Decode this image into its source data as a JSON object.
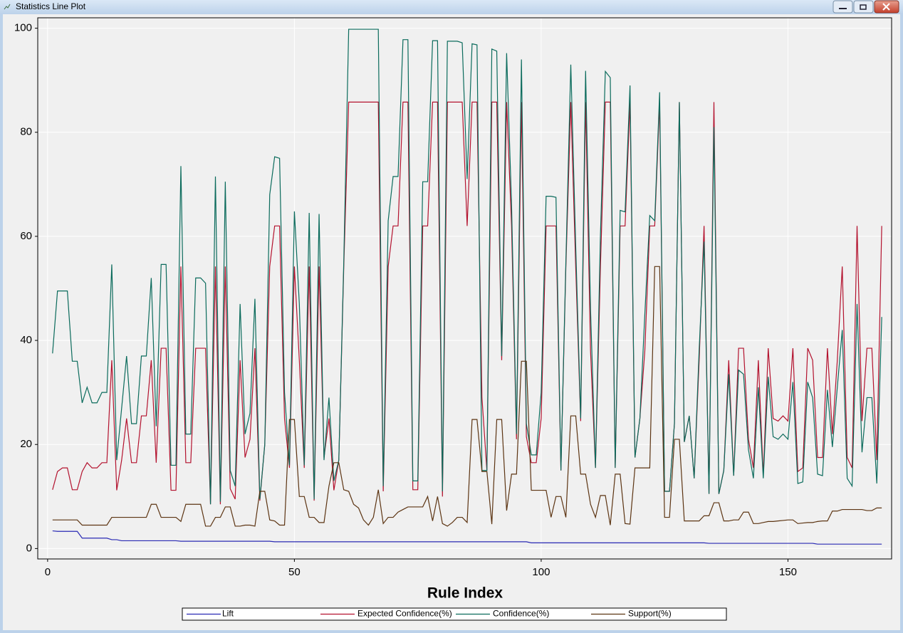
{
  "window_title": "Statistics Line Plot",
  "chart_data": {
    "type": "line",
    "xlabel": "Rule Index",
    "x": [
      1,
      2,
      3,
      4,
      5,
      6,
      7,
      8,
      9,
      10,
      11,
      12,
      13,
      14,
      15,
      16,
      17,
      18,
      19,
      20,
      21,
      22,
      23,
      24,
      25,
      26,
      27,
      28,
      29,
      30,
      31,
      32,
      33,
      34,
      35,
      36,
      37,
      38,
      39,
      40,
      41,
      42,
      43,
      44,
      45,
      46,
      47,
      48,
      49,
      50,
      51,
      52,
      53,
      54,
      55,
      56,
      57,
      58,
      59,
      60,
      61,
      62,
      63,
      64,
      65,
      66,
      67,
      68,
      69,
      70,
      71,
      72,
      73,
      74,
      75,
      76,
      77,
      78,
      79,
      80,
      81,
      82,
      83,
      84,
      85,
      86,
      87,
      88,
      89,
      90,
      91,
      92,
      93,
      94,
      95,
      96,
      97,
      98,
      99,
      100,
      101,
      102,
      103,
      104,
      105,
      106,
      107,
      108,
      109,
      110,
      111,
      112,
      113,
      114,
      115,
      116,
      117,
      118,
      119,
      120,
      121,
      122,
      123,
      124,
      125,
      126,
      127,
      128,
      129,
      130,
      131,
      132,
      133,
      134,
      135,
      136,
      137,
      138,
      139,
      140,
      141,
      142,
      143,
      144,
      145,
      146,
      147,
      148,
      149,
      150,
      151,
      152,
      153,
      154,
      155,
      156,
      157,
      158,
      159,
      160,
      161,
      162,
      163,
      164,
      165,
      166,
      167,
      168,
      169
    ],
    "series": [
      {
        "name": "Lift",
        "color": "#2a2ab4",
        "values": [
          3.4,
          3.3,
          3.3,
          3.3,
          3.3,
          3.3,
          2,
          2,
          2,
          2,
          2,
          2,
          1.7,
          1.7,
          1.5,
          1.5,
          1.5,
          1.5,
          1.5,
          1.5,
          1.5,
          1.5,
          1.5,
          1.5,
          1.5,
          1.5,
          1.4,
          1.4,
          1.4,
          1.4,
          1.4,
          1.4,
          1.4,
          1.4,
          1.4,
          1.4,
          1.4,
          1.4,
          1.4,
          1.4,
          1.4,
          1.4,
          1.4,
          1.4,
          1.4,
          1.3,
          1.3,
          1.3,
          1.3,
          1.3,
          1.3,
          1.3,
          1.3,
          1.3,
          1.3,
          1.3,
          1.3,
          1.3,
          1.3,
          1.3,
          1.3,
          1.3,
          1.3,
          1.3,
          1.3,
          1.3,
          1.3,
          1.3,
          1.3,
          1.3,
          1.3,
          1.3,
          1.3,
          1.3,
          1.3,
          1.3,
          1.3,
          1.3,
          1.3,
          1.3,
          1.3,
          1.3,
          1.3,
          1.3,
          1.3,
          1.3,
          1.3,
          1.3,
          1.3,
          1.3,
          1.3,
          1.3,
          1.3,
          1.3,
          1.3,
          1.3,
          1.3,
          1.1,
          1.1,
          1.1,
          1.1,
          1.1,
          1.1,
          1.1,
          1.1,
          1.1,
          1.1,
          1.1,
          1.1,
          1.1,
          1.1,
          1.1,
          1.1,
          1.1,
          1.1,
          1.1,
          1.1,
          1.1,
          1.1,
          1.1,
          1.1,
          1.1,
          1.1,
          1.1,
          1.1,
          1.1,
          1.1,
          1.1,
          1.1,
          1.1,
          1.1,
          1.1,
          1.1,
          1,
          1,
          1,
          1,
          1,
          1,
          1,
          1,
          1,
          1,
          1,
          1,
          1,
          1,
          1,
          1,
          1,
          1,
          1,
          1,
          1,
          1,
          0.85,
          0.85,
          0.85,
          0.85,
          0.85,
          0.85,
          0.85,
          0.85,
          0.85,
          0.85,
          0.85,
          0.85,
          0.85,
          0.85
        ]
      },
      {
        "name": "Expected Confidence(%)",
        "color": "#b3122e",
        "values": [
          11.3,
          14.8,
          15.5,
          15.5,
          11.3,
          11.3,
          14.8,
          16.5,
          15.5,
          15.5,
          16.5,
          16.5,
          36.2,
          11.2,
          17,
          25,
          16.5,
          16.5,
          25.5,
          25.5,
          36.2,
          16.5,
          38.5,
          38.5,
          11.2,
          11.2,
          54.2,
          16.5,
          16.5,
          38.5,
          38.5,
          38.5,
          8.5,
          54.2,
          8.5,
          54.2,
          11.5,
          9.5,
          36.2,
          17.5,
          21,
          38.5,
          9.2,
          20,
          54.2,
          62,
          62,
          25,
          15.5,
          54.2,
          36.2,
          15.5,
          54.2,
          9.2,
          54.2,
          17.5,
          25,
          11.2,
          17,
          54,
          85.8,
          85.8,
          85.8,
          85.8,
          85.8,
          85.8,
          85.8,
          11,
          54.2,
          62,
          62,
          85.8,
          85.8,
          11.3,
          11.3,
          62,
          62,
          85.8,
          85.8,
          10,
          85.8,
          85.8,
          85.8,
          85.8,
          62,
          85.8,
          85.8,
          29,
          15,
          85.8,
          85.8,
          36.2,
          85.8,
          62,
          21,
          85.8,
          21.5,
          16.5,
          16.5,
          25,
          62,
          62,
          62,
          15,
          54,
          85.8,
          54,
          24.5,
          85.8,
          38,
          15.5,
          54,
          85.8,
          85.8,
          15.5,
          62,
          62,
          85.8,
          17.5,
          25,
          38,
          62,
          62,
          85.8,
          11,
          11,
          24,
          85.8,
          20.5,
          25.5,
          13.5,
          36,
          62,
          10.5,
          85.8,
          10.5,
          15,
          36.2,
          14,
          38.5,
          38.5,
          21,
          15.5,
          36.2,
          14,
          38.5,
          25,
          24.5,
          25.5,
          24.5,
          38.5,
          14.8,
          15.5,
          38.5,
          36.2,
          17.5,
          17.5,
          38.5,
          22,
          36.2,
          54.2,
          17.5,
          15.5,
          62,
          24.5,
          38.5,
          38.5,
          17,
          62
        ]
      },
      {
        "name": "Confidence(%)",
        "color": "#0b6b5c",
        "values": [
          37.5,
          49.5,
          49.5,
          49.5,
          36,
          36,
          28,
          31,
          28,
          28,
          30,
          30,
          54.6,
          17,
          27,
          37,
          24,
          24,
          37,
          37,
          52,
          23.5,
          54.6,
          54.6,
          16,
          16,
          73.5,
          22,
          22,
          52,
          52,
          51,
          8.5,
          71.5,
          9,
          70.5,
          15,
          12,
          47,
          22,
          26,
          48,
          9.5,
          20,
          68,
          75.3,
          75,
          30,
          16,
          64.8,
          47,
          16,
          64.5,
          9.5,
          64.3,
          17,
          29,
          13,
          17,
          55,
          99.8,
          99.8,
          99.8,
          99.8,
          99.8,
          99.8,
          99.8,
          12,
          63,
          71.5,
          71.5,
          97.8,
          97.8,
          13,
          13,
          70.5,
          70.5,
          97.6,
          97.6,
          11,
          97.5,
          97.5,
          97.5,
          97.2,
          71,
          97,
          96.8,
          15,
          15,
          96,
          95.6,
          37,
          95.2,
          66,
          22,
          94,
          24,
          18,
          18,
          30,
          67.7,
          67.7,
          67.5,
          15,
          55,
          93,
          58,
          25,
          91.8,
          46,
          15.5,
          60,
          91.7,
          90.5,
          15.5,
          65,
          64.7,
          89,
          17.5,
          25,
          45,
          64,
          63,
          87.7,
          11,
          11,
          24,
          85.8,
          20.5,
          25.5,
          13.5,
          38,
          59,
          10.5,
          81,
          10.5,
          15,
          33.5,
          14,
          34.3,
          33.5,
          19,
          13.5,
          31,
          13.5,
          33,
          21.5,
          21,
          22,
          21,
          32,
          12.5,
          12.8,
          32,
          29,
          14.3,
          14,
          30.5,
          19.5,
          31,
          42,
          13.5,
          12,
          47,
          18.5,
          29,
          29,
          12.5,
          44.5
        ]
      },
      {
        "name": "Support(%)",
        "color": "#5c3412",
        "values": [
          5.5,
          5.5,
          5.5,
          5.5,
          5.5,
          5.5,
          4.5,
          4.5,
          4.5,
          4.5,
          4.5,
          4.5,
          6,
          6,
          6,
          6,
          6,
          6,
          6,
          6,
          8.5,
          8.5,
          6,
          6,
          6,
          6,
          5.2,
          8.5,
          8.5,
          8.5,
          8.5,
          4.3,
          4.3,
          6,
          6,
          8,
          8,
          4.3,
          4.3,
          4.5,
          4.5,
          4.3,
          11,
          11,
          5.5,
          5.3,
          4.5,
          4.5,
          24.8,
          24.8,
          10,
          10,
          6,
          6,
          5,
          5,
          12,
          16.5,
          16.5,
          11.3,
          11,
          8.5,
          7.8,
          5.5,
          4.5,
          6,
          11.3,
          4.8,
          6,
          6,
          7,
          7.5,
          8,
          8,
          8,
          8,
          10,
          5.3,
          10,
          4.8,
          4.3,
          5,
          6,
          6,
          5,
          24.8,
          24.8,
          14.8,
          14.8,
          4.7,
          24.8,
          24.8,
          7.3,
          14.3,
          14.3,
          36,
          36,
          11.2,
          11.2,
          11.2,
          11.2,
          6,
          10,
          10,
          6,
          25.5,
          25.5,
          14.3,
          14.3,
          8.5,
          6,
          10.2,
          10.2,
          4.5,
          14.3,
          14.3,
          4.8,
          4.7,
          15.5,
          15.5,
          15.5,
          15.5,
          54.2,
          54.2,
          6,
          6,
          21,
          21,
          5.3,
          5.3,
          5.3,
          5.3,
          6.3,
          6.3,
          8.8,
          8.8,
          5.3,
          5.3,
          5.5,
          5.5,
          7,
          7,
          4.8,
          4.8,
          5,
          5.2,
          5.2,
          5.3,
          5.4,
          5.5,
          5.5,
          4.8,
          4.9,
          5,
          5,
          5.2,
          5.3,
          5.3,
          7.2,
          7.2,
          7.5,
          7.5,
          7.5,
          7.5,
          7.5,
          7.3,
          7.3,
          7.8,
          7.8
        ]
      }
    ],
    "xlim": [
      -2,
      171
    ],
    "xticks": [
      0,
      50,
      100,
      150
    ],
    "ylim": [
      -2,
      102
    ],
    "yticks": [
      0,
      20,
      40,
      60,
      80,
      100
    ],
    "grid": true,
    "legend": "bottom"
  }
}
